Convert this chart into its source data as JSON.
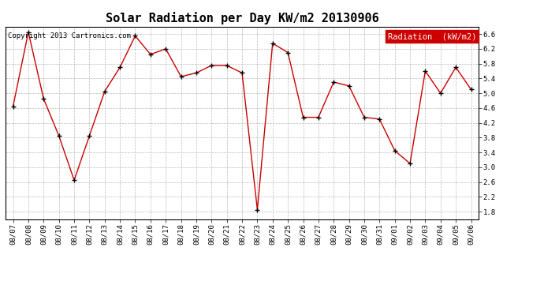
{
  "title": "Solar Radiation per Day KW/m2 20130906",
  "copyright": "Copyright 2013 Cartronics.com",
  "legend_label": "Radiation  (kW/m2)",
  "dates": [
    "08/07",
    "08/08",
    "08/09",
    "08/10",
    "08/11",
    "08/12",
    "08/13",
    "08/14",
    "08/15",
    "08/16",
    "08/17",
    "08/18",
    "08/19",
    "08/20",
    "08/21",
    "08/22",
    "08/23",
    "08/24",
    "08/25",
    "08/26",
    "08/27",
    "08/28",
    "08/29",
    "08/30",
    "08/31",
    "09/01",
    "09/02",
    "09/03",
    "09/04",
    "09/05",
    "09/06"
  ],
  "values": [
    4.65,
    6.65,
    4.85,
    3.85,
    2.65,
    3.85,
    5.05,
    5.7,
    6.55,
    6.05,
    6.2,
    5.45,
    5.55,
    5.75,
    5.75,
    5.55,
    1.85,
    6.35,
    6.1,
    4.35,
    4.35,
    5.3,
    5.2,
    4.35,
    4.3,
    3.45,
    3.1,
    5.6,
    5.0,
    5.7,
    5.1
  ],
  "ylim": [
    1.6,
    6.8
  ],
  "yticks": [
    1.8,
    2.2,
    2.6,
    3.0,
    3.4,
    3.8,
    4.2,
    4.6,
    5.0,
    5.4,
    5.8,
    6.2,
    6.6
  ],
  "line_color": "#cc0000",
  "marker_color": "#000000",
  "bg_color": "#ffffff",
  "plot_bg_color": "#ffffff",
  "grid_color": "#aaaaaa",
  "legend_bg": "#cc0000",
  "legend_text_color": "#ffffff",
  "title_fontsize": 11,
  "copyright_fontsize": 6.5,
  "tick_fontsize": 6.5,
  "legend_fontsize": 7.5
}
